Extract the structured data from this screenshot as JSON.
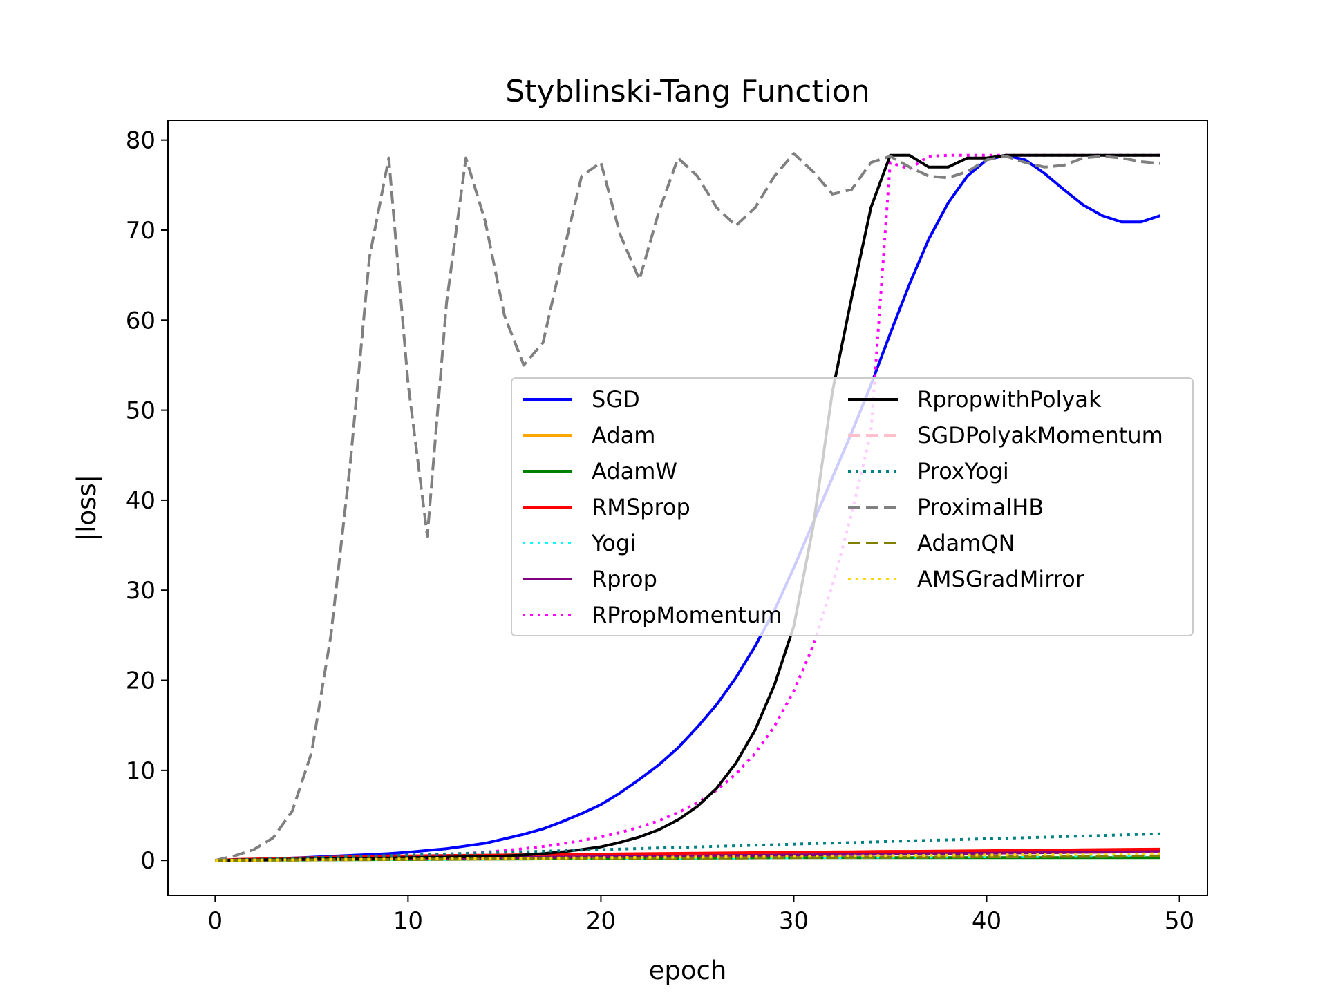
{
  "chart_data": {
    "type": "line",
    "title": "Styblinski-Tang Function",
    "xlabel": "epoch",
    "ylabel": "|loss|",
    "xlim": [
      -2.45,
      51.45
    ],
    "ylim": [
      -3.9,
      82.2
    ],
    "xticks": [
      0,
      10,
      20,
      30,
      40,
      50
    ],
    "yticks": [
      0,
      10,
      20,
      30,
      40,
      50,
      60,
      70,
      80
    ],
    "grid": false,
    "legend_position": "center-right",
    "x": [
      0,
      1,
      2,
      3,
      4,
      5,
      6,
      7,
      8,
      9,
      10,
      11,
      12,
      13,
      14,
      15,
      16,
      17,
      18,
      19,
      20,
      21,
      22,
      23,
      24,
      25,
      26,
      27,
      28,
      29,
      30,
      31,
      32,
      33,
      34,
      35,
      36,
      37,
      38,
      39,
      40,
      41,
      42,
      43,
      44,
      45,
      46,
      47,
      48,
      49
    ],
    "series": [
      {
        "name": "SGD",
        "color": "#0000ff",
        "style": "solid",
        "values": [
          0,
          0.05,
          0.1,
          0.18,
          0.25,
          0.35,
          0.45,
          0.55,
          0.65,
          0.75,
          0.9,
          1.1,
          1.3,
          1.6,
          1.9,
          2.4,
          2.9,
          3.5,
          4.3,
          5.2,
          6.2,
          7.5,
          9.0,
          10.6,
          12.5,
          14.8,
          17.3,
          20.3,
          23.8,
          27.8,
          32.5,
          37.5,
          42.5,
          47.5,
          52.8,
          58.5,
          64.0,
          69.0,
          73.0,
          76.0,
          77.8,
          78.3,
          77.8,
          76.3,
          74.5,
          72.8,
          71.6,
          70.9,
          70.9,
          71.6
        ]
      },
      {
        "name": "Adam",
        "color": "#ffa500",
        "style": "solid",
        "values": [
          0,
          0.02,
          0.04,
          0.06,
          0.08,
          0.1,
          0.12,
          0.14,
          0.16,
          0.18,
          0.2,
          0.22,
          0.24,
          0.26,
          0.28,
          0.3,
          0.32,
          0.34,
          0.36,
          0.38,
          0.4,
          0.42,
          0.44,
          0.46,
          0.48,
          0.5,
          0.52,
          0.54,
          0.56,
          0.58,
          0.6,
          0.62,
          0.64,
          0.66,
          0.68,
          0.7,
          0.72,
          0.74,
          0.76,
          0.78,
          0.8,
          0.82,
          0.84,
          0.86,
          0.88,
          0.9,
          0.92,
          0.94,
          0.96,
          0.98
        ]
      },
      {
        "name": "AdamW",
        "color": "#008000",
        "style": "solid",
        "values": [
          0,
          0.01,
          0.02,
          0.03,
          0.04,
          0.05,
          0.06,
          0.07,
          0.08,
          0.09,
          0.1,
          0.11,
          0.12,
          0.13,
          0.14,
          0.15,
          0.16,
          0.17,
          0.18,
          0.19,
          0.2,
          0.21,
          0.22,
          0.23,
          0.24,
          0.25,
          0.26,
          0.27,
          0.28,
          0.29,
          0.3,
          0.3,
          0.3,
          0.3,
          0.3,
          0.3,
          0.3,
          0.3,
          0.3,
          0.3,
          0.3,
          0.3,
          0.3,
          0.3,
          0.3,
          0.3,
          0.3,
          0.3,
          0.3,
          0.3
        ]
      },
      {
        "name": "RMSprop",
        "color": "#ff0000",
        "style": "solid",
        "values": [
          0,
          0.1,
          0.15,
          0.2,
          0.25,
          0.3,
          0.35,
          0.4,
          0.45,
          0.5,
          0.5,
          0.52,
          0.54,
          0.56,
          0.58,
          0.6,
          0.62,
          0.64,
          0.66,
          0.68,
          0.7,
          0.72,
          0.74,
          0.76,
          0.78,
          0.8,
          0.82,
          0.84,
          0.86,
          0.88,
          0.9,
          0.92,
          0.94,
          0.96,
          0.98,
          1.0,
          1.0,
          1.02,
          1.04,
          1.06,
          1.08,
          1.1,
          1.12,
          1.14,
          1.16,
          1.18,
          1.2,
          1.22,
          1.24,
          1.25
        ]
      },
      {
        "name": "Yogi",
        "color": "#00ffff",
        "style": "dotted",
        "values": [
          0,
          0.01,
          0.02,
          0.03,
          0.04,
          0.05,
          0.06,
          0.07,
          0.08,
          0.09,
          0.1,
          0.11,
          0.12,
          0.13,
          0.14,
          0.15,
          0.16,
          0.17,
          0.18,
          0.19,
          0.2,
          0.21,
          0.22,
          0.23,
          0.24,
          0.25,
          0.26,
          0.27,
          0.28,
          0.29,
          0.3,
          0.31,
          0.32,
          0.33,
          0.34,
          0.35,
          0.36,
          0.37,
          0.38,
          0.39,
          0.4,
          0.41,
          0.42,
          0.43,
          0.44,
          0.45,
          0.46,
          0.47,
          0.48,
          0.49
        ]
      },
      {
        "name": "Rprop",
        "color": "#800080",
        "style": "solid",
        "values": [
          0,
          0.02,
          0.04,
          0.06,
          0.08,
          0.1,
          0.12,
          0.14,
          0.16,
          0.18,
          0.2,
          0.22,
          0.24,
          0.26,
          0.28,
          0.3,
          0.32,
          0.34,
          0.36,
          0.38,
          0.4,
          0.42,
          0.44,
          0.46,
          0.48,
          0.5,
          0.52,
          0.54,
          0.56,
          0.58,
          0.6,
          0.62,
          0.64,
          0.66,
          0.68,
          0.7,
          0.72,
          0.74,
          0.76,
          0.78,
          0.8,
          0.82,
          0.84,
          0.86,
          0.88,
          0.9,
          0.92,
          0.94,
          0.96,
          0.98
        ]
      },
      {
        "name": "RPropMomentum",
        "color": "#ff00ff",
        "style": "dotted",
        "values": [
          0,
          0.02,
          0.04,
          0.07,
          0.1,
          0.14,
          0.18,
          0.23,
          0.29,
          0.36,
          0.44,
          0.53,
          0.64,
          0.77,
          0.92,
          1.1,
          1.3,
          1.55,
          1.85,
          2.2,
          2.6,
          3.1,
          3.7,
          4.4,
          5.3,
          6.4,
          7.8,
          9.6,
          11.9,
          14.9,
          18.8,
          23.8,
          30.5,
          38.5,
          47.5,
          77.5,
          76.8,
          78.2,
          78.3,
          78.3,
          78.3,
          78.3,
          78.3,
          78.3,
          78.3,
          78.3,
          78.3,
          78.3,
          78.3,
          78.3
        ]
      },
      {
        "name": "RpropwithPolyak",
        "color": "#000000",
        "style": "solid",
        "values": [
          0,
          0.03,
          0.06,
          0.09,
          0.12,
          0.15,
          0.18,
          0.21,
          0.24,
          0.27,
          0.3,
          0.33,
          0.36,
          0.4,
          0.45,
          0.5,
          0.6,
          0.75,
          0.95,
          1.2,
          1.5,
          2.0,
          2.6,
          3.4,
          4.5,
          6.0,
          8.0,
          10.8,
          14.5,
          19.5,
          26.0,
          37.0,
          52.0,
          62.5,
          72.5,
          78.3,
          78.3,
          77.0,
          77.0,
          78.0,
          78.0,
          78.3,
          78.3,
          78.3,
          78.3,
          78.3,
          78.3,
          78.3,
          78.3,
          78.3
        ]
      },
      {
        "name": "SGDPolyakMomentum",
        "color": "#ffc0cb",
        "style": "dashed",
        "values": [
          0,
          0.01,
          0.02,
          0.03,
          0.04,
          0.05,
          0.06,
          0.07,
          0.08,
          0.09,
          0.1,
          0.11,
          0.12,
          0.13,
          0.14,
          0.15,
          0.16,
          0.17,
          0.18,
          0.19,
          0.2,
          0.21,
          0.22,
          0.23,
          0.24,
          0.25,
          0.26,
          0.27,
          0.28,
          0.29,
          0.3,
          0.31,
          0.32,
          0.33,
          0.34,
          0.35,
          0.36,
          0.37,
          0.38,
          0.39,
          0.4,
          0.41,
          0.42,
          0.43,
          0.44,
          0.45,
          0.46,
          0.47,
          0.48,
          0.49
        ]
      },
      {
        "name": "ProxYogi",
        "color": "#008080",
        "style": "dotted",
        "values": [
          0,
          0.06,
          0.12,
          0.18,
          0.24,
          0.3,
          0.36,
          0.42,
          0.48,
          0.54,
          0.6,
          0.66,
          0.72,
          0.78,
          0.84,
          0.9,
          0.96,
          1.02,
          1.08,
          1.14,
          1.2,
          1.26,
          1.32,
          1.38,
          1.44,
          1.5,
          1.56,
          1.62,
          1.68,
          1.74,
          1.8,
          1.86,
          1.92,
          1.98,
          2.04,
          2.1,
          2.16,
          2.22,
          2.28,
          2.34,
          2.4,
          2.46,
          2.52,
          2.58,
          2.64,
          2.7,
          2.76,
          2.82,
          2.88,
          2.95
        ]
      },
      {
        "name": "ProximalHB",
        "color": "#808080",
        "style": "dashed",
        "values": [
          0,
          0.5,
          1.2,
          2.5,
          5.5,
          12.0,
          25.0,
          44.0,
          67.0,
          78.0,
          53.0,
          36.0,
          62.0,
          78.0,
          71.0,
          60.5,
          55.0,
          57.5,
          67.0,
          76.0,
          77.5,
          69.5,
          64.5,
          72.0,
          78.0,
          76.0,
          72.5,
          70.5,
          72.5,
          76.0,
          78.5,
          76.5,
          74.0,
          74.5,
          77.5,
          78.2,
          77.0,
          76.0,
          75.8,
          76.5,
          77.8,
          78.2,
          77.5,
          77.0,
          77.2,
          78.0,
          78.2,
          78.0,
          77.6,
          77.4
        ]
      },
      {
        "name": "AdamQN",
        "color": "#808000",
        "style": "dashed",
        "values": [
          0,
          0.01,
          0.02,
          0.03,
          0.04,
          0.05,
          0.06,
          0.07,
          0.08,
          0.09,
          0.1,
          0.11,
          0.12,
          0.13,
          0.14,
          0.15,
          0.16,
          0.17,
          0.18,
          0.19,
          0.2,
          0.21,
          0.22,
          0.23,
          0.24,
          0.25,
          0.26,
          0.27,
          0.28,
          0.29,
          0.3,
          0.31,
          0.32,
          0.33,
          0.34,
          0.35,
          0.36,
          0.37,
          0.38,
          0.39,
          0.4,
          0.41,
          0.42,
          0.43,
          0.44,
          0.45,
          0.46,
          0.47,
          0.48,
          0.49
        ]
      },
      {
        "name": "AMSGradMirror",
        "color": "#ffd700",
        "style": "dotted",
        "values": [
          0,
          0.015,
          0.03,
          0.045,
          0.06,
          0.075,
          0.09,
          0.105,
          0.12,
          0.135,
          0.15,
          0.165,
          0.18,
          0.195,
          0.21,
          0.225,
          0.24,
          0.255,
          0.27,
          0.285,
          0.3,
          0.315,
          0.33,
          0.345,
          0.36,
          0.375,
          0.39,
          0.405,
          0.42,
          0.435,
          0.45,
          0.465,
          0.48,
          0.495,
          0.51,
          0.525,
          0.54,
          0.555,
          0.57,
          0.585,
          0.6,
          0.615,
          0.63,
          0.645,
          0.66,
          0.675,
          0.69,
          0.705,
          0.72,
          0.735
        ]
      }
    ]
  }
}
